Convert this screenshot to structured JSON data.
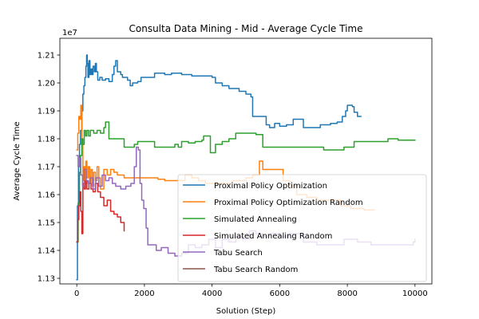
{
  "chart_data": {
    "type": "line",
    "title": "Consulta Data Mining - Mid - Average Cycle Time",
    "xlabel": "Solution (Step)",
    "ylabel": "Average Cycle Time",
    "y_offset_text": "1e7",
    "xlim": [
      -500,
      10500
    ],
    "ylim": [
      11280000,
      12160000
    ],
    "x_ticks": [
      0,
      2000,
      4000,
      6000,
      8000,
      10000
    ],
    "x_tick_labels": [
      "0",
      "2000",
      "4000",
      "6000",
      "8000",
      "10000"
    ],
    "y_ticks": [
      11300000,
      11400000,
      11500000,
      11600000,
      11700000,
      11800000,
      11900000,
      12000000,
      12100000
    ],
    "y_tick_labels": [
      "1.13",
      "1.14",
      "1.15",
      "1.16",
      "1.17",
      "1.18",
      "1.19",
      "1.20",
      "1.21"
    ],
    "grid": false,
    "legend_position": "lower-right",
    "series": [
      {
        "name": "Proximal Policy Optimization",
        "color": "#1f77b4",
        "points": [
          [
            0,
            11295000
          ],
          [
            20,
            11560000
          ],
          [
            50,
            11700000
          ],
          [
            80,
            11780000
          ],
          [
            110,
            11830000
          ],
          [
            150,
            11900000
          ],
          [
            180,
            11960000
          ],
          [
            210,
            11990000
          ],
          [
            240,
            12020000
          ],
          [
            270,
            12060000
          ],
          [
            290,
            12100000
          ],
          [
            310,
            12070000
          ],
          [
            330,
            12020000
          ],
          [
            360,
            12080000
          ],
          [
            390,
            12030000
          ],
          [
            420,
            12050000
          ],
          [
            450,
            12030000
          ],
          [
            480,
            12060000
          ],
          [
            520,
            12040000
          ],
          [
            550,
            12070000
          ],
          [
            580,
            12040000
          ],
          [
            620,
            12010000
          ],
          [
            680,
            12020000
          ],
          [
            750,
            12010000
          ],
          [
            850,
            12015000
          ],
          [
            950,
            12005000
          ],
          [
            1050,
            12030000
          ],
          [
            1100,
            12060000
          ],
          [
            1150,
            12080000
          ],
          [
            1200,
            12040000
          ],
          [
            1300,
            12030000
          ],
          [
            1350,
            12020000
          ],
          [
            1500,
            12010000
          ],
          [
            1580,
            11990000
          ],
          [
            1650,
            12000000
          ],
          [
            1800,
            12005000
          ],
          [
            1900,
            12020000
          ],
          [
            2200,
            12020000
          ],
          [
            2300,
            12035000
          ],
          [
            2600,
            12030000
          ],
          [
            2800,
            12035000
          ],
          [
            3100,
            12030000
          ],
          [
            3400,
            12025000
          ],
          [
            3800,
            12025000
          ],
          [
            4000,
            12020000
          ],
          [
            4100,
            12000000
          ],
          [
            4300,
            11990000
          ],
          [
            4500,
            11980000
          ],
          [
            4800,
            11970000
          ],
          [
            5000,
            11960000
          ],
          [
            5150,
            11950000
          ],
          [
            5200,
            11880000
          ],
          [
            5500,
            11880000
          ],
          [
            5600,
            11850000
          ],
          [
            5700,
            11840000
          ],
          [
            5850,
            11855000
          ],
          [
            6000,
            11845000
          ],
          [
            6200,
            11850000
          ],
          [
            6400,
            11870000
          ],
          [
            6700,
            11840000
          ],
          [
            7000,
            11840000
          ],
          [
            7200,
            11850000
          ],
          [
            7500,
            11855000
          ],
          [
            7700,
            11860000
          ],
          [
            7850,
            11880000
          ],
          [
            7950,
            11900000
          ],
          [
            8000,
            11920000
          ],
          [
            8150,
            11915000
          ],
          [
            8200,
            11895000
          ],
          [
            8300,
            11880000
          ],
          [
            8400,
            11880000
          ]
        ]
      },
      {
        "name": "Proximal Policy Optimization Random",
        "color": "#ff7f0e",
        "points": [
          [
            0,
            11760000
          ],
          [
            30,
            11820000
          ],
          [
            60,
            11880000
          ],
          [
            90,
            11870000
          ],
          [
            120,
            11920000
          ],
          [
            150,
            11780000
          ],
          [
            180,
            11650000
          ],
          [
            210,
            11700000
          ],
          [
            240,
            11640000
          ],
          [
            270,
            11720000
          ],
          [
            300,
            11660000
          ],
          [
            340,
            11700000
          ],
          [
            380,
            11640000
          ],
          [
            420,
            11690000
          ],
          [
            460,
            11630000
          ],
          [
            500,
            11680000
          ],
          [
            550,
            11650000
          ],
          [
            600,
            11700000
          ],
          [
            650,
            11660000
          ],
          [
            700,
            11620000
          ],
          [
            800,
            11690000
          ],
          [
            900,
            11670000
          ],
          [
            1000,
            11690000
          ],
          [
            1100,
            11680000
          ],
          [
            1200,
            11670000
          ],
          [
            1400,
            11660000
          ],
          [
            1600,
            11660000
          ],
          [
            1800,
            11660000
          ],
          [
            2100,
            11660000
          ],
          [
            2400,
            11655000
          ],
          [
            2600,
            11650000
          ],
          [
            3000,
            11650000
          ],
          [
            3200,
            11670000
          ],
          [
            3400,
            11660000
          ],
          [
            3600,
            11650000
          ],
          [
            3800,
            11640000
          ],
          [
            4200,
            11640000
          ],
          [
            4600,
            11650000
          ],
          [
            5000,
            11660000
          ],
          [
            5200,
            11670000
          ],
          [
            5400,
            11720000
          ],
          [
            5500,
            11690000
          ],
          [
            5700,
            11690000
          ],
          [
            6000,
            11690000
          ],
          [
            6100,
            11650000
          ],
          [
            6300,
            11630000
          ],
          [
            6500,
            11600000
          ],
          [
            6800,
            11590000
          ],
          [
            7100,
            11580000
          ],
          [
            7500,
            11580000
          ],
          [
            7800,
            11560000
          ],
          [
            8100,
            11550000
          ],
          [
            8300,
            11550000
          ],
          [
            8500,
            11545000
          ],
          [
            8800,
            11545000
          ]
        ]
      },
      {
        "name": "Simulated Annealing",
        "color": "#2ca02c",
        "points": [
          [
            0,
            11430000
          ],
          [
            40,
            11570000
          ],
          [
            80,
            11680000
          ],
          [
            110,
            11740000
          ],
          [
            150,
            11800000
          ],
          [
            180,
            11780000
          ],
          [
            220,
            11830000
          ],
          [
            260,
            11810000
          ],
          [
            300,
            11830000
          ],
          [
            350,
            11810000
          ],
          [
            400,
            11830000
          ],
          [
            500,
            11820000
          ],
          [
            600,
            11830000
          ],
          [
            700,
            11820000
          ],
          [
            800,
            11840000
          ],
          [
            850,
            11860000
          ],
          [
            950,
            11800000
          ],
          [
            1100,
            11800000
          ],
          [
            1400,
            11770000
          ],
          [
            1700,
            11780000
          ],
          [
            1800,
            11790000
          ],
          [
            2200,
            11790000
          ],
          [
            2300,
            11770000
          ],
          [
            2600,
            11770000
          ],
          [
            2900,
            11780000
          ],
          [
            3000,
            11770000
          ],
          [
            3100,
            11790000
          ],
          [
            3300,
            11785000
          ],
          [
            3500,
            11790000
          ],
          [
            3700,
            11795000
          ],
          [
            3750,
            11810000
          ],
          [
            3900,
            11810000
          ],
          [
            3950,
            11750000
          ],
          [
            4100,
            11780000
          ],
          [
            4300,
            11790000
          ],
          [
            4500,
            11800000
          ],
          [
            4700,
            11820000
          ],
          [
            5000,
            11820000
          ],
          [
            5300,
            11815000
          ],
          [
            5500,
            11770000
          ],
          [
            5800,
            11770000
          ],
          [
            6200,
            11770000
          ],
          [
            6600,
            11770000
          ],
          [
            6900,
            11770000
          ],
          [
            7300,
            11760000
          ],
          [
            7700,
            11760000
          ],
          [
            7900,
            11770000
          ],
          [
            8200,
            11790000
          ],
          [
            8500,
            11790000
          ],
          [
            8800,
            11790000
          ],
          [
            9200,
            11800000
          ],
          [
            9500,
            11795000
          ],
          [
            10000,
            11795000
          ]
        ]
      },
      {
        "name": "Simulated Annealing Random",
        "color": "#d62728",
        "points": [
          [
            0,
            11430000
          ],
          [
            30,
            11510000
          ],
          [
            60,
            11560000
          ],
          [
            90,
            11610000
          ],
          [
            120,
            11540000
          ],
          [
            150,
            11460000
          ],
          [
            180,
            11640000
          ],
          [
            220,
            11620000
          ],
          [
            260,
            11650000
          ],
          [
            300,
            11620000
          ],
          [
            360,
            11640000
          ],
          [
            420,
            11620000
          ],
          [
            480,
            11610000
          ],
          [
            550,
            11640000
          ],
          [
            620,
            11610000
          ],
          [
            700,
            11590000
          ],
          [
            800,
            11560000
          ],
          [
            900,
            11580000
          ],
          [
            1000,
            11540000
          ],
          [
            1100,
            11530000
          ],
          [
            1200,
            11520000
          ],
          [
            1300,
            11500000
          ],
          [
            1400,
            11470000
          ]
        ]
      },
      {
        "name": "Tabu Search",
        "color": "#9467bd",
        "points": [
          [
            0,
            11740000
          ],
          [
            40,
            11700000
          ],
          [
            80,
            11730000
          ],
          [
            120,
            11670000
          ],
          [
            170,
            11630000
          ],
          [
            220,
            11690000
          ],
          [
            280,
            11650000
          ],
          [
            340,
            11640000
          ],
          [
            400,
            11660000
          ],
          [
            480,
            11620000
          ],
          [
            560,
            11660000
          ],
          [
            650,
            11630000
          ],
          [
            750,
            11670000
          ],
          [
            850,
            11650000
          ],
          [
            950,
            11660000
          ],
          [
            1050,
            11640000
          ],
          [
            1150,
            11630000
          ],
          [
            1300,
            11620000
          ],
          [
            1450,
            11630000
          ],
          [
            1600,
            11640000
          ],
          [
            1700,
            11700000
          ],
          [
            1760,
            11770000
          ],
          [
            1820,
            11760000
          ],
          [
            1870,
            11640000
          ],
          [
            1920,
            11580000
          ],
          [
            1980,
            11550000
          ],
          [
            2050,
            11480000
          ],
          [
            2100,
            11420000
          ],
          [
            2200,
            11420000
          ],
          [
            2350,
            11400000
          ],
          [
            2500,
            11410000
          ],
          [
            2700,
            11390000
          ],
          [
            2900,
            11380000
          ],
          [
            3100,
            11390000
          ],
          [
            3300,
            11420000
          ],
          [
            3500,
            11410000
          ],
          [
            3700,
            11420000
          ],
          [
            3900,
            11440000
          ],
          [
            4100,
            11410000
          ],
          [
            4300,
            11440000
          ],
          [
            4500,
            11430000
          ],
          [
            4700,
            11450000
          ],
          [
            4900,
            11440000
          ],
          [
            5100,
            11470000
          ],
          [
            5300,
            11460000
          ],
          [
            5500,
            11450000
          ],
          [
            5700,
            11460000
          ],
          [
            6000,
            11450000
          ],
          [
            6300,
            11460000
          ],
          [
            6700,
            11430000
          ],
          [
            7100,
            11420000
          ],
          [
            7500,
            11420000
          ],
          [
            7900,
            11440000
          ],
          [
            8300,
            11430000
          ],
          [
            8700,
            11420000
          ],
          [
            9100,
            11420000
          ],
          [
            9600,
            11420000
          ],
          [
            9950,
            11430000
          ],
          [
            10000,
            11440000
          ]
        ]
      },
      {
        "name": "Tabu Search Random",
        "color": "#8c564b",
        "points": []
      }
    ]
  }
}
